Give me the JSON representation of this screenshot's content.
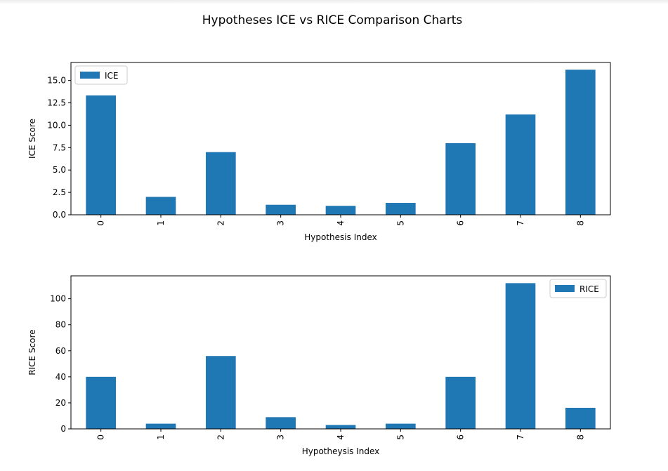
{
  "figure": {
    "suptitle": "Hypotheses ICE vs RICE Comparison Charts"
  },
  "chart_data": [
    {
      "type": "bar",
      "categories": [
        "0",
        "1",
        "2",
        "3",
        "4",
        "5",
        "6",
        "7",
        "8"
      ],
      "series": [
        {
          "name": "ICE",
          "values": [
            13.33,
            2.0,
            7.0,
            1.12,
            1.0,
            1.33,
            8.0,
            11.2,
            16.2
          ],
          "color": "#1f77b4"
        }
      ],
      "xlabel": "Hypothesis Index",
      "ylabel": "ICE Score",
      "ylim": [
        0,
        17.01
      ],
      "yticks": [
        0.0,
        2.5,
        5.0,
        7.5,
        10.0,
        12.5,
        15.0
      ],
      "ytick_labels": [
        "0.0",
        "2.5",
        "5.0",
        "7.5",
        "10.0",
        "12.5",
        "15.0"
      ],
      "grid": false,
      "legend": "upper left",
      "xtick_rotation": 90
    },
    {
      "type": "bar",
      "categories": [
        "0",
        "1",
        "2",
        "3",
        "4",
        "5",
        "6",
        "7",
        "8"
      ],
      "series": [
        {
          "name": "RICE",
          "values": [
            40.0,
            4.0,
            56.0,
            9.0,
            3.0,
            4.0,
            40.0,
            112.0,
            16.2
          ],
          "color": "#1f77b4"
        }
      ],
      "xlabel": "Hypotheysis Index",
      "ylabel": "RICE Score",
      "ylim": [
        0,
        117.6
      ],
      "yticks": [
        0,
        20,
        40,
        60,
        80,
        100
      ],
      "ytick_labels": [
        "0",
        "20",
        "40",
        "60",
        "80",
        "100"
      ],
      "grid": false,
      "legend": "upper right",
      "xtick_rotation": 90
    }
  ]
}
